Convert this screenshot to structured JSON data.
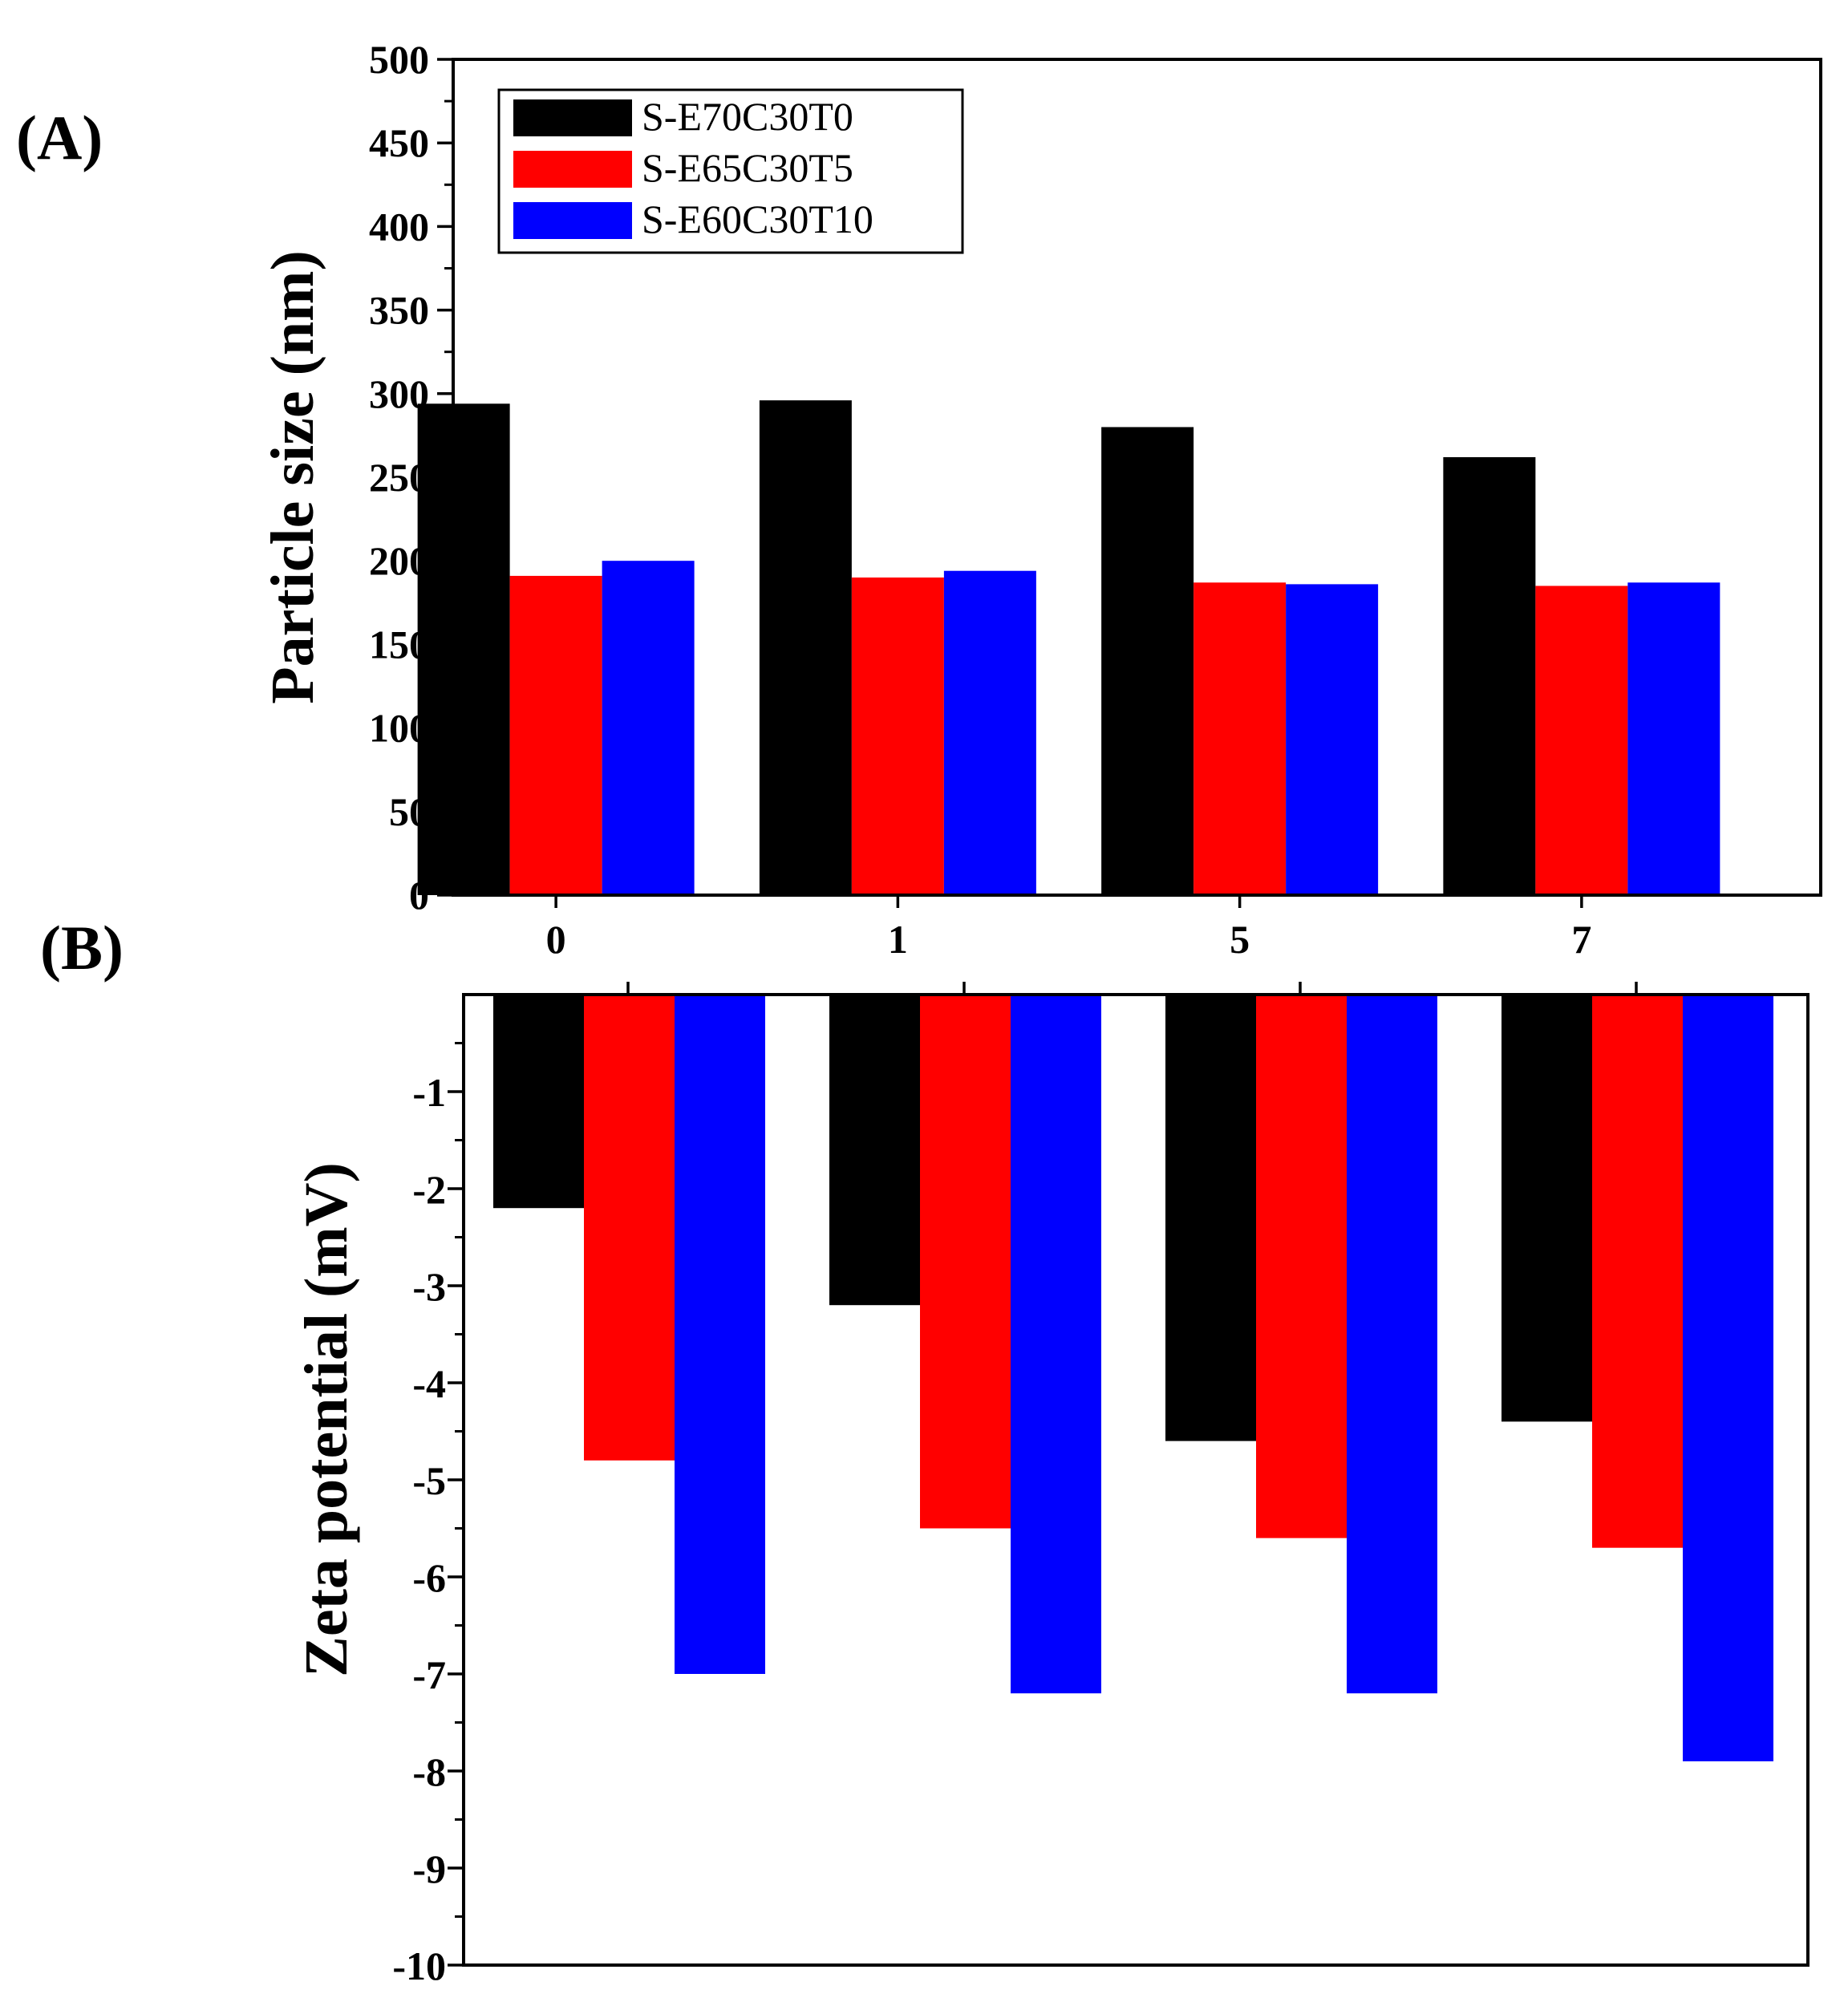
{
  "chart_data": [
    {
      "type": "bar",
      "panel_label": "(A)",
      "ylabel": "Particle size (nm)",
      "xlabel": "",
      "categories": [
        "0",
        "1",
        "5",
        "7"
      ],
      "ylim": [
        0,
        500
      ],
      "yticks": [
        "0",
        "50",
        "100",
        "150",
        "200",
        "250",
        "300",
        "350",
        "400",
        "450",
        "500"
      ],
      "legend_position": "top-left",
      "series": [
        {
          "name": "S-E70C30T0",
          "color": "#000000",
          "values": [
            294,
            296,
            280,
            262
          ]
        },
        {
          "name": "S-E65C30T5",
          "color": "#ff0000",
          "values": [
            191,
            190,
            187,
            185
          ]
        },
        {
          "name": "S-E60C30T10",
          "color": "#0000ff",
          "values": [
            200,
            194,
            186,
            187
          ]
        }
      ]
    },
    {
      "type": "bar",
      "panel_label": "(B)",
      "ylabel": "Zeta potential (mV)",
      "xlabel": "",
      "categories": [
        "0",
        "1",
        "5",
        "7"
      ],
      "ylim": [
        -10,
        0
      ],
      "yticks": [
        "-1",
        "-2",
        "-3",
        "-4",
        "-5",
        "-6",
        "-7",
        "-8",
        "-9",
        "-10"
      ],
      "series": [
        {
          "name": "S-E70C30T0",
          "color": "#000000",
          "values": [
            -2.2,
            -3.2,
            -4.6,
            -4.4
          ]
        },
        {
          "name": "S-E65C30T5",
          "color": "#ff0000",
          "values": [
            -4.8,
            -5.5,
            -5.6,
            -5.7
          ]
        },
        {
          "name": "S-E60C30T10",
          "color": "#0000ff",
          "values": [
            -7.0,
            -7.2,
            -7.2,
            -7.9
          ]
        }
      ]
    }
  ]
}
